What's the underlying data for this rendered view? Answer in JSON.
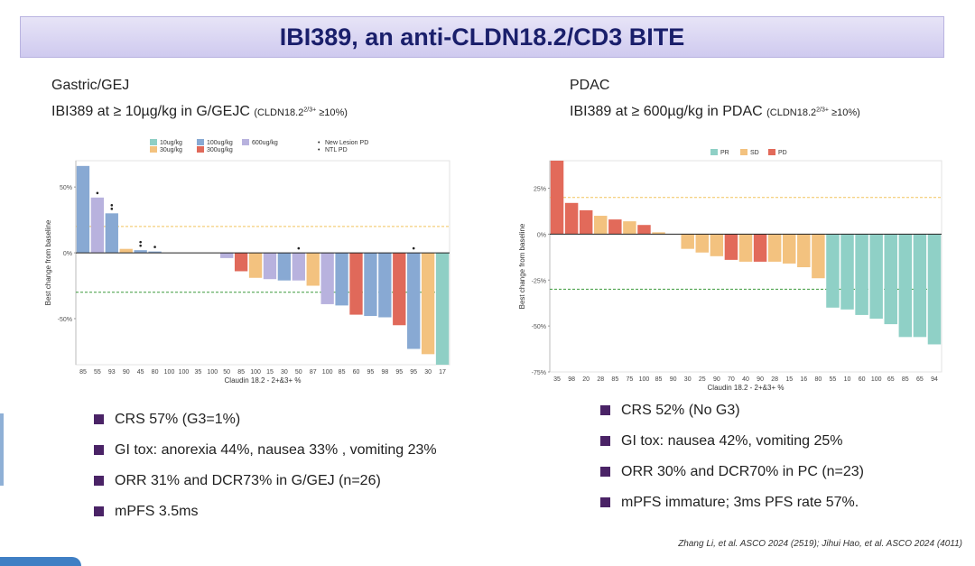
{
  "slide_title": "IBI389, an anti-CLDN18.2/CD3 BITE",
  "left": {
    "heading": "Gastric/GEJ",
    "subtitle_main": "IBI389 at ≥ 10µg/kg in G/GEJC ",
    "subtitle_note_pre": "(CLDN18.2",
    "subtitle_note_sup": "2/3+",
    "subtitle_note_post": " ≥10%)",
    "bullets": [
      "CRS 57% (G3=1%)",
      "GI tox: anorexia 44%, nausea 33% , vomiting 23%",
      "ORR 31% and DCR73% in G/GEJ (n=26)",
      "mPFS 3.5ms"
    ]
  },
  "right": {
    "heading": "PDAC",
    "subtitle_main": "IBI389 at ≥ 600µg/kg in PDAC ",
    "subtitle_note_pre": "(CLDN18.2",
    "subtitle_note_sup": "2/3+",
    "subtitle_note_post": " ≥10%)",
    "bullets": [
      "CRS 52% (No G3)",
      "GI tox: nausea 42%, vomiting 25%",
      "ORR 30% and DCR70% in PC (n=23)",
      "mPFS immature; 3ms PFS rate 57%."
    ]
  },
  "citation": "Zhang Li, et al. ASCO 2024 (2519); Jihui Hao, et al. ASCO 2024 (4011)",
  "chart_data": [
    {
      "type": "bar",
      "xlabel": "Claudin 18.2 - 2+&3+ %",
      "ylabel": "Best change from baseline",
      "ylim": [
        -85,
        70
      ],
      "yticks": [
        50,
        0,
        -50
      ],
      "ytick_labels": [
        "50%",
        "0%",
        "-50%"
      ],
      "ref_lines": [
        20,
        -30
      ],
      "legend_position": "top",
      "legend": [
        {
          "label": "10ug/kg",
          "color": "#8fcfc5"
        },
        {
          "label": "100ug/kg",
          "color": "#88a9d3"
        },
        {
          "label": "600ug/kg",
          "color": "#b8b2de"
        },
        {
          "label": "30ug/kg",
          "color": "#f3c27f"
        },
        {
          "label": "300ug/kg",
          "color": "#e0695a"
        }
      ],
      "marker_legend": [
        {
          "symbol": "•",
          "label": "New Lesion PD"
        },
        {
          "symbol": "•",
          "label": "NTL PD"
        }
      ],
      "categories": [
        "85",
        "55",
        "93",
        "90",
        "45",
        "80",
        "100",
        "100",
        "35",
        "100",
        "50",
        "85",
        "100",
        "15",
        "30",
        "50",
        "87",
        "100",
        "85",
        "60",
        "95",
        "98",
        "95",
        "95",
        "30",
        "17"
      ],
      "values": [
        66,
        42,
        30,
        3,
        2,
        1,
        0,
        0,
        0,
        0,
        -4,
        -14,
        -19,
        -20,
        -21,
        -21,
        -25,
        -39,
        -40,
        -47,
        -48,
        -49,
        -55,
        -73,
        -77,
        -85
      ],
      "dose": [
        "100ug/kg",
        "600ug/kg",
        "100ug/kg",
        "30ug/kg",
        "100ug/kg",
        "100ug/kg",
        "",
        "",
        "",
        "",
        "600ug/kg",
        "300ug/kg",
        "30ug/kg",
        "600ug/kg",
        "100ug/kg",
        "600ug/kg",
        "30ug/kg",
        "600ug/kg",
        "100ug/kg",
        "300ug/kg",
        "100ug/kg",
        "100ug/kg",
        "300ug/kg",
        "100ug/kg",
        "30ug/kg",
        "10ug/kg"
      ],
      "markers": [
        0,
        1,
        2,
        0,
        2,
        1,
        0,
        0,
        0,
        0,
        0,
        0,
        0,
        0,
        0,
        1,
        0,
        0,
        0,
        0,
        0,
        0,
        0,
        1,
        0,
        0
      ]
    },
    {
      "type": "bar",
      "xlabel": "Claudin 18.2 - 2+&3+ %",
      "ylabel": "Best change from baseline",
      "ylim": [
        -75,
        40
      ],
      "yticks": [
        25,
        0,
        -25,
        -50,
        -75
      ],
      "ytick_labels": [
        "25%",
        "0%",
        "-25%",
        "-50%",
        "-75%"
      ],
      "ref_lines": [
        20,
        -30
      ],
      "legend_position": "top",
      "legend": [
        {
          "label": "PR",
          "color": "#8fd0c6"
        },
        {
          "label": "SD",
          "color": "#f3c27f"
        },
        {
          "label": "PD",
          "color": "#e26a5a"
        }
      ],
      "categories": [
        "35",
        "98",
        "20",
        "28",
        "85",
        "75",
        "100",
        "85",
        "90",
        "30",
        "25",
        "90",
        "70",
        "40",
        "90",
        "28",
        "15",
        "16",
        "80",
        "55",
        "10",
        "60",
        "100",
        "65",
        "85",
        "65",
        "94"
      ],
      "values": [
        40,
        17,
        13,
        10,
        8,
        7,
        5,
        1,
        0,
        -8,
        -10,
        -12,
        -14,
        -15,
        -15,
        -15,
        -16,
        -18,
        -24,
        -40,
        -41,
        -44,
        -46,
        -49,
        -56,
        -56,
        -60
      ],
      "response": [
        "PD",
        "PD",
        "PD",
        "SD",
        "PD",
        "SD",
        "PD",
        "SD",
        "SD",
        "SD",
        "SD",
        "SD",
        "PD",
        "SD",
        "PD",
        "SD",
        "SD",
        "SD",
        "SD",
        "PR",
        "PR",
        "PR",
        "PR",
        "PR",
        "PR",
        "PR",
        "PR"
      ]
    }
  ]
}
